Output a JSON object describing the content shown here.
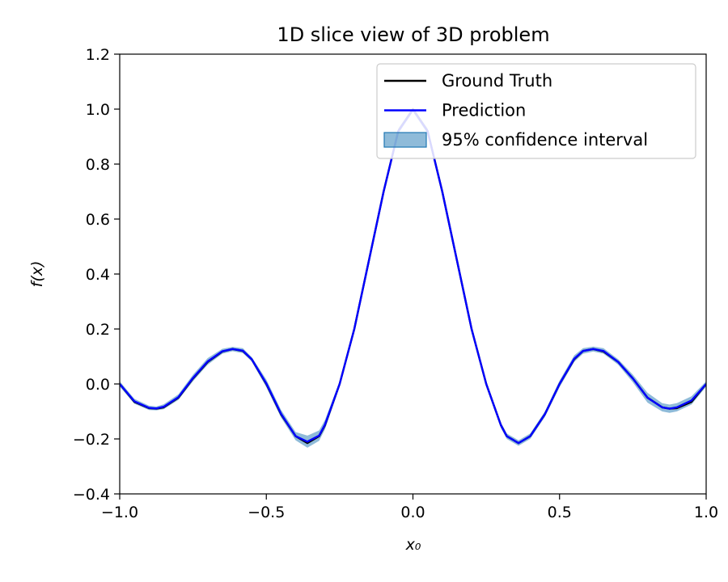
{
  "chart_data": {
    "type": "line",
    "title": "1D slice view of 3D problem",
    "xlabel": "x₀",
    "ylabel": "f(x)",
    "xlim": [
      -1.0,
      1.0
    ],
    "ylim": [
      -0.4,
      1.2
    ],
    "xticks": [
      -1.0,
      -0.5,
      0.0,
      0.5,
      1.0
    ],
    "xtick_labels": [
      "−1.0",
      "−0.5",
      "0.0",
      "0.5",
      "1.0"
    ],
    "yticks": [
      -0.4,
      -0.2,
      0.0,
      0.2,
      0.4,
      0.6,
      0.8,
      1.0,
      1.2
    ],
    "ytick_labels": [
      "−0.4",
      "−0.2",
      "0.0",
      "0.2",
      "0.4",
      "0.6",
      "0.8",
      "1.0",
      "1.2"
    ],
    "grid": false,
    "legend_position": "top-right",
    "x": [
      -1.0,
      -0.95,
      -0.9,
      -0.875,
      -0.85,
      -0.8,
      -0.75,
      -0.7,
      -0.65,
      -0.615,
      -0.58,
      -0.55,
      -0.5,
      -0.45,
      -0.4,
      -0.36,
      -0.32,
      -0.3,
      -0.25,
      -0.2,
      -0.15,
      -0.1,
      -0.05,
      0.0,
      0.05,
      0.1,
      0.15,
      0.2,
      0.25,
      0.3,
      0.32,
      0.36,
      0.4,
      0.45,
      0.5,
      0.55,
      0.58,
      0.615,
      0.65,
      0.7,
      0.75,
      0.8,
      0.85,
      0.875,
      0.9,
      0.95,
      1.0
    ],
    "series": [
      {
        "name": "Ground Truth",
        "color": "#000000",
        "values": [
          0.0,
          -0.065,
          -0.088,
          -0.09,
          -0.085,
          -0.05,
          0.02,
          0.08,
          0.118,
          0.127,
          0.12,
          0.09,
          0.0,
          -0.11,
          -0.19,
          -0.215,
          -0.19,
          -0.15,
          0.0,
          0.2,
          0.45,
          0.7,
          0.92,
          1.0,
          0.92,
          0.7,
          0.45,
          0.2,
          0.0,
          -0.15,
          -0.19,
          -0.215,
          -0.19,
          -0.11,
          0.0,
          0.09,
          0.12,
          0.127,
          0.118,
          0.08,
          0.02,
          -0.05,
          -0.085,
          -0.09,
          -0.088,
          -0.065,
          0.0
        ]
      },
      {
        "name": "Prediction",
        "color": "#0000ff",
        "values": [
          0.0,
          -0.063,
          -0.087,
          -0.089,
          -0.083,
          -0.048,
          0.022,
          0.082,
          0.119,
          0.127,
          0.121,
          0.09,
          0.002,
          -0.108,
          -0.19,
          -0.21,
          -0.188,
          -0.148,
          0.0,
          0.2,
          0.45,
          0.7,
          0.92,
          0.998,
          0.92,
          0.7,
          0.45,
          0.2,
          0.0,
          -0.15,
          -0.19,
          -0.215,
          -0.19,
          -0.11,
          0.0,
          0.092,
          0.12,
          0.127,
          0.12,
          0.08,
          0.02,
          -0.05,
          -0.085,
          -0.09,
          -0.085,
          -0.06,
          0.0
        ]
      }
    ],
    "confidence_interval": {
      "name": "95% confidence interval",
      "color": "#1f77b4",
      "lower": [
        -0.01,
        -0.072,
        -0.095,
        -0.096,
        -0.092,
        -0.058,
        0.01,
        0.07,
        0.11,
        0.119,
        0.112,
        0.082,
        -0.012,
        -0.122,
        -0.205,
        -0.232,
        -0.207,
        -0.165,
        -0.01,
        0.19,
        0.44,
        0.69,
        0.91,
        0.99,
        0.91,
        0.69,
        0.44,
        0.19,
        -0.01,
        -0.16,
        -0.2,
        -0.225,
        -0.2,
        -0.12,
        -0.012,
        0.08,
        0.11,
        0.118,
        0.11,
        0.07,
        0.006,
        -0.068,
        -0.1,
        -0.105,
        -0.1,
        -0.075,
        -0.01
      ],
      "upper": [
        0.01,
        -0.054,
        -0.079,
        -0.082,
        -0.074,
        -0.038,
        0.034,
        0.094,
        0.128,
        0.135,
        0.13,
        0.098,
        0.016,
        -0.094,
        -0.175,
        -0.188,
        -0.169,
        -0.131,
        0.01,
        0.21,
        0.46,
        0.71,
        0.93,
        1.006,
        0.93,
        0.71,
        0.46,
        0.21,
        0.01,
        -0.14,
        -0.18,
        -0.205,
        -0.18,
        -0.1,
        0.012,
        0.104,
        0.13,
        0.136,
        0.13,
        0.09,
        0.034,
        -0.032,
        -0.07,
        -0.075,
        -0.07,
        -0.045,
        0.01
      ]
    }
  }
}
